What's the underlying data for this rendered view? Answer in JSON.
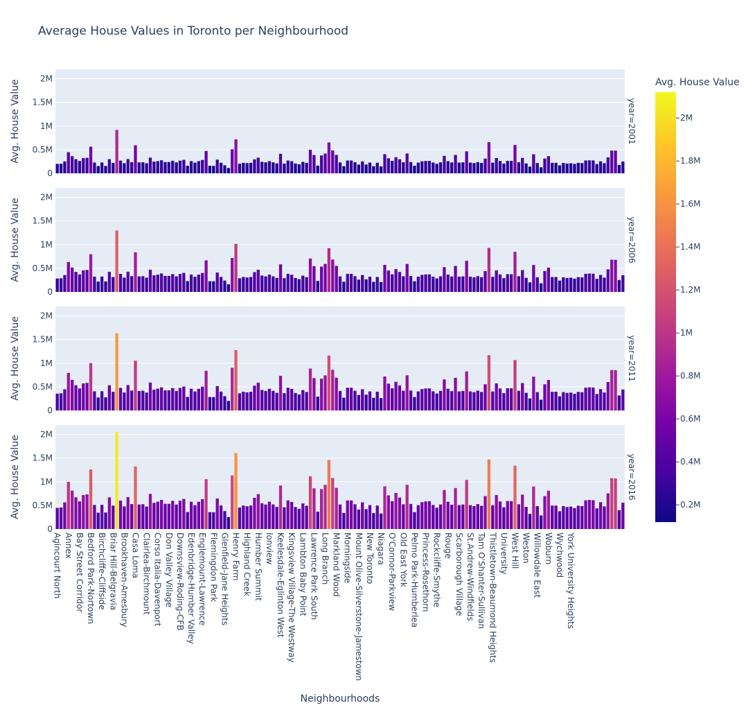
{
  "chart_data": {
    "type": "bar",
    "title": "Average House Values in Toronto per Neighbourhood",
    "xlabel": "Neighbourhoods",
    "ylabel": "Avg. House Value",
    "ylim": [
      0,
      2200000
    ],
    "yticks": [
      {
        "value": 0,
        "label": "0"
      },
      {
        "value": 500000,
        "label": "0.5M"
      },
      {
        "value": 1000000,
        "label": "1M"
      },
      {
        "value": 1500000,
        "label": "1.5M"
      },
      {
        "value": 2000000,
        "label": "2M"
      }
    ],
    "colorbar": {
      "title": "Avg. House Value",
      "range": [
        120000,
        2120000
      ],
      "colors": [
        "#0d0887",
        "#46039f",
        "#7201a8",
        "#9c179e",
        "#bd3786",
        "#d8576b",
        "#ed7953",
        "#fb9f3a",
        "#fdca26",
        "#f0f921"
      ],
      "ticks": [
        {
          "value": 200000,
          "label": "0.2M"
        },
        {
          "value": 400000,
          "label": "0.4M"
        },
        {
          "value": 600000,
          "label": "0.6M"
        },
        {
          "value": 800000,
          "label": "0.8M"
        },
        {
          "value": 1000000,
          "label": "1M"
        },
        {
          "value": 1200000,
          "label": "1.2M"
        },
        {
          "value": 1400000,
          "label": "1.4M"
        },
        {
          "value": 1600000,
          "label": "1.6M"
        },
        {
          "value": 1800000,
          "label": "1.8M"
        },
        {
          "value": 2000000,
          "label": "2M"
        }
      ]
    },
    "x_tick_labels": [
      "Agincourt North",
      "Annex",
      "Bay Street Corridor",
      "Bedford Park-Nortown",
      "Birchcliffe-Cliffside",
      "Briar Hill-Belgravia",
      "Brookhaven-Amesbury",
      "Casa Loma",
      "Clairlea-Birchmount",
      "Corso Italia-Davenport",
      "Don Valley Village",
      "Downsview-Roding-CFB",
      "Edenbridge-Humber Valley",
      "Englemount-Lawrence",
      "Flemingdon Park",
      "Glenfield-Jane Heights",
      "Henry Farm",
      "Highland Creek",
      "Humber Summit",
      "Ionview",
      "Keelesdale-Eglinton West",
      "Kingsview Village-The Westway",
      "Lambton Baby Point",
      "Lawrence Park South",
      "Long Branch",
      "Markland Wood",
      "Morningside",
      "Mount Olive-Silverstone-Jamestown",
      "New Toronto",
      "Niagara",
      "O'Connor-Parkview",
      "Old East York",
      "Pelmo Park-Humberlea",
      "Princess-Rosethorn",
      "Rockcliffe-Smythe",
      "Rouge",
      "Scarborough Village",
      "St.Andrew-Windfields",
      "Tam O'Shanter-Sullivan",
      "Thistletown-Beaumond Heights",
      "University",
      "West Hill",
      "Weston",
      "Willowdale East",
      "Woburn",
      "Wychwood",
      "York University Heights"
    ],
    "facets": [
      {
        "name": "year=2001",
        "values": [
          200000,
          203000,
          252000,
          447000,
          364000,
          300000,
          262000,
          322000,
          328000,
          564000,
          228000,
          155000,
          229000,
          156000,
          300000,
          222000,
          919000,
          270000,
          214000,
          302000,
          237000,
          593000,
          232000,
          235000,
          213000,
          333000,
          248000,
          259000,
          276000,
          239000,
          239000,
          267000,
          232000,
          268000,
          285000,
          161000,
          259000,
          226000,
          258000,
          283000,
          473000,
          160000,
          159000,
          290000,
          224000,
          170000,
          113000,
          508000,
          719000,
          204000,
          223000,
          216000,
          223000,
          296000,
          331000,
          244000,
          232000,
          258000,
          233000,
          210000,
          413000,
          205000,
          271000,
          257000,
          208000,
          191000,
          243000,
          221000,
          500000,
          386000,
          164000,
          379000,
          418000,
          654000,
          484000,
          390000,
          232000,
          152000,
          271000,
          271000,
          235000,
          185000,
          253000,
          188000,
          227000,
          151000,
          224000,
          147000,
          405000,
          319000,
          264000,
          341000,
          298000,
          234000,
          419000,
          238000,
          160000,
          227000,
          255000,
          262000,
          263000,
          228000,
          202000,
          233000,
          370000,
          258000,
          230000,
          389000,
          227000,
          232000,
          465000,
          227000,
          217000,
          236000,
          221000,
          312000,
          659000,
          226000,
          323000,
          262000,
          206000,
          265000,
          264000,
          600000,
          234000,
          326000,
          210000,
          143000,
          403000,
          218000,
          128000,
          312000,
          363000,
          222000,
          223000,
          169000,
          219000,
          208000,
          213000,
          198000,
          221000,
          217000,
          272000,
          275000,
          273000,
          196000,
          254000,
          214000,
          338000,
          482000,
          480000,
          178000,
          249000
        ]
      },
      {
        "name": "year=2006",
        "values": [
          283000,
          287000,
          356000,
          632000,
          515000,
          424000,
          370000,
          455000,
          464000,
          797000,
          322000,
          219000,
          324000,
          221000,
          424000,
          314000,
          1298000,
          381000,
          302000,
          427000,
          334000,
          838000,
          328000,
          332000,
          301000,
          470000,
          350000,
          366000,
          390000,
          338000,
          338000,
          377000,
          328000,
          379000,
          402000,
          228000,
          366000,
          319000,
          364000,
          400000,
          668000,
          226000,
          225000,
          410000,
          317000,
          240000,
          160000,
          718000,
          1016000,
          288000,
          315000,
          305000,
          315000,
          418000,
          468000,
          345000,
          328000,
          365000,
          329000,
          297000,
          583000,
          290000,
          383000,
          363000,
          294000,
          270000,
          343000,
          312000,
          706000,
          545000,
          232000,
          535000,
          591000,
          924000,
          684000,
          551000,
          328000,
          215000,
          383000,
          383000,
          332000,
          261000,
          357000,
          266000,
          321000,
          213000,
          316000,
          208000,
          572000,
          451000,
          373000,
          482000,
          421000,
          331000,
          592000,
          336000,
          226000,
          321000,
          360000,
          370000,
          372000,
          322000,
          285000,
          329000,
          523000,
          365000,
          325000,
          550000,
          321000,
          328000,
          657000,
          321000,
          307000,
          333000,
          312000,
          441000,
          931000,
          319000,
          456000,
          370000,
          291000,
          374000,
          373000,
          848000,
          331000,
          461000,
          297000,
          202000,
          569000,
          308000,
          181000,
          441000,
          513000,
          314000,
          315000,
          239000,
          309000,
          294000,
          301000,
          280000,
          312000,
          307000,
          384000,
          389000,
          386000,
          277000,
          359000,
          302000,
          478000,
          681000,
          678000,
          252000,
          352000
        ]
      },
      {
        "name": "year=2011",
        "values": [
          356000,
          362000,
          448000,
          795000,
          647000,
          533000,
          465000,
          572000,
          583000,
          1002000,
          405000,
          275000,
          407000,
          278000,
          533000,
          395000,
          1632000,
          479000,
          380000,
          537000,
          420000,
          1053000,
          412000,
          417000,
          378000,
          591000,
          440000,
          460000,
          490000,
          425000,
          425000,
          474000,
          412000,
          476000,
          506000,
          286000,
          460000,
          401000,
          458000,
          503000,
          840000,
          284000,
          283000,
          515000,
          398000,
          302000,
          201000,
          903000,
          1277000,
          362000,
          396000,
          383000,
          396000,
          526000,
          588000,
          434000,
          412000,
          459000,
          414000,
          373000,
          733000,
          365000,
          481000,
          456000,
          370000,
          339000,
          431000,
          392000,
          888000,
          685000,
          292000,
          673000,
          743000,
          1162000,
          860000,
          693000,
          412000,
          270000,
          481000,
          481000,
          417000,
          328000,
          449000,
          334000,
          403000,
          268000,
          397000,
          261000,
          719000,
          567000,
          469000,
          606000,
          529000,
          416000,
          744000,
          422000,
          284000,
          403000,
          453000,
          465000,
          468000,
          405000,
          358000,
          414000,
          657000,
          459000,
          409000,
          691000,
          403000,
          412000,
          826000,
          403000,
          386000,
          419000,
          392000,
          554000,
          1171000,
          401000,
          573000,
          465000,
          366000,
          470000,
          469000,
          1066000,
          416000,
          580000,
          373000,
          254000,
          715000,
          387000,
          228000,
          554000,
          645000,
          395000,
          396000,
          300000,
          388000,
          370000,
          378000,
          352000,
          392000,
          386000,
          483000,
          489000,
          485000,
          348000,
          451000,
          380000,
          601000,
          856000,
          852000,
          317000,
          443000
        ]
      },
      {
        "name": "year=2016",
        "values": [
          447000,
          455000,
          563000,
          999000,
          813000,
          670000,
          584000,
          719000,
          733000,
          1260000,
          509000,
          346000,
          511000,
          349000,
          670000,
          496000,
          2051000,
          602000,
          478000,
          675000,
          528000,
          1323000,
          518000,
          524000,
          475000,
          743000,
          553000,
          578000,
          616000,
          534000,
          534000,
          596000,
          518000,
          598000,
          636000,
          359000,
          578000,
          504000,
          576000,
          632000,
          1056000,
          357000,
          356000,
          647000,
          500000,
          380000,
          253000,
          1135000,
          1605000,
          455000,
          498000,
          481000,
          498000,
          661000,
          739000,
          545000,
          518000,
          577000,
          520000,
          469000,
          921000,
          459000,
          605000,
          573000,
          465000,
          426000,
          542000,
          493000,
          1116000,
          861000,
          367000,
          846000,
          934000,
          1461000,
          1081000,
          871000,
          518000,
          339000,
          605000,
          605000,
          524000,
          412000,
          564000,
          420000,
          506000,
          337000,
          499000,
          328000,
          904000,
          713000,
          589000,
          762000,
          665000,
          523000,
          935000,
          530000,
          357000,
          506000,
          569000,
          584000,
          588000,
          509000,
          450000,
          520000,
          826000,
          577000,
          514000,
          868000,
          506000,
          518000,
          1038000,
          506000,
          485000,
          527000,
          493000,
          696000,
          1472000,
          504000,
          720000,
          584000,
          460000,
          591000,
          589000,
          1340000,
          523000,
          729000,
          469000,
          319000,
          899000,
          486000,
          287000,
          696000,
          811000,
          496000,
          498000,
          377000,
          488000,
          465000,
          475000,
          442000,
          493000,
          485000,
          607000,
          615000,
          610000,
          437000,
          567000,
          478000,
          755000,
          1076000,
          1071000,
          398000,
          557000
        ]
      }
    ]
  }
}
